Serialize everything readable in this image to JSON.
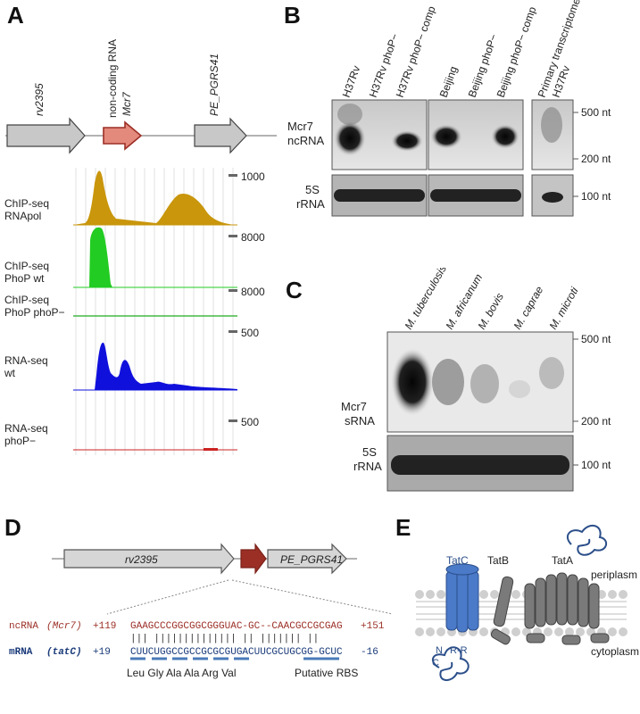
{
  "panels": {
    "a": "A",
    "b": "B",
    "c": "C",
    "d": "D",
    "e": "E"
  },
  "panel_a": {
    "genes": [
      "rv2395",
      "PE_PGRS41"
    ],
    "ncrna_label_1": "non-coding RNA",
    "ncrna_label_2": "Mcr7",
    "tracks": [
      {
        "line1": "ChIP-seq",
        "line2": "RNApol",
        "max": "1000",
        "color": "#c9960c"
      },
      {
        "line1": "ChIP-seq",
        "line2": "PhoP wt",
        "max": "8000",
        "color": "#22cc22"
      },
      {
        "line1": "ChIP-seq",
        "line2": "PhoP phoP−",
        "max": "8000",
        "color": "#22aa22"
      },
      {
        "line1": "RNA-seq",
        "line2": "wt",
        "max": "500",
        "color": "#1010dd"
      },
      {
        "line1": "RNA-seq",
        "line2": "phoP−",
        "max": "500",
        "color": "#cc2222"
      }
    ],
    "small_marks": [
      "± ..",
      "± .."
    ]
  },
  "panel_b": {
    "lanes": [
      "H37Rv",
      "H37Rv phoP−",
      "H37Rv phoP− comp",
      "Beijing",
      "Beijing phoP−",
      "Beijing phoP− comp",
      "Primary transcriptome",
      "H37Rv"
    ],
    "row1_line1": "Mcr7",
    "row1_line2": "ncRNA",
    "row2_line1": "5S",
    "row2_line2": "rRNA",
    "markers": [
      "500 nt",
      "200 nt",
      "100 nt"
    ]
  },
  "panel_c": {
    "lanes": [
      "M. tuberculosis",
      "M. africanum",
      "M. bovis",
      "M. caprae",
      "M. microti"
    ],
    "row1_line1": "Mcr7",
    "row1_line2": "sRNA",
    "row2_line1": "5S",
    "row2_line2": "rRNA",
    "markers": [
      "500 nt",
      "200 nt",
      "100 nt"
    ]
  },
  "panel_d": {
    "genes": [
      "rv2395",
      "PE_PGRS41"
    ],
    "nc_label": "ncRNA",
    "nc_name": "(Mcr7)",
    "nc_start": "+119",
    "nc_seq": "GAAGCCCGGCGGCGGGUAC-GC--CAACGCCGCGAG",
    "nc_end": "+151",
    "bars": "|||    ||||||||||||||  ||    |||||||  ||",
    "m_label": "mRNA",
    "m_name": "(tatC)",
    "m_start": "+19",
    "m_seq": "CUUCUGGCCGCCGCGCGUGACUUCGCUGCGG-GCUC",
    "m_end": "-16",
    "codons": "Leu Gly Ala Ala Arg Val",
    "rbs": "Putative RBS"
  },
  "panel_e": {
    "tatc": "TatC",
    "tatb": "TatB",
    "tata": "TatA",
    "periplasm": "periplasm",
    "cytoplasm": "cytoplasm",
    "n": "N",
    "c": "C",
    "rr": "R-R"
  }
}
